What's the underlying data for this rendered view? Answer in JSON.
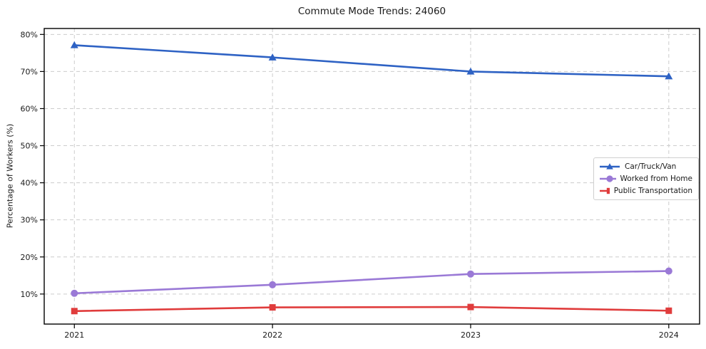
{
  "chart_data": {
    "type": "line",
    "title": "Commute Mode Trends: 24060",
    "xlabel": "",
    "ylabel": "Percentage of Workers (%)",
    "categories": [
      "2021",
      "2022",
      "2023",
      "2024"
    ],
    "series": [
      {
        "name": "Car/Truck/Van",
        "color": "#2e62c4",
        "marker": "triangle",
        "values": [
          77.1,
          73.8,
          70.0,
          68.7
        ]
      },
      {
        "name": "Worked from Home",
        "color": "#9a79d6",
        "marker": "circle",
        "values": [
          10.2,
          12.5,
          15.4,
          16.2
        ]
      },
      {
        "name": "Public Transportation",
        "color": "#e03c3c",
        "marker": "square",
        "values": [
          5.4,
          6.4,
          6.5,
          5.5
        ]
      }
    ],
    "yticks": [
      {
        "value": 10,
        "label": "10%"
      },
      {
        "value": 20,
        "label": "20%"
      },
      {
        "value": 30,
        "label": "30%"
      },
      {
        "value": 40,
        "label": "40%"
      },
      {
        "value": 50,
        "label": "50%"
      },
      {
        "value": 60,
        "label": "60%"
      },
      {
        "value": 70,
        "label": "70%"
      },
      {
        "value": 80,
        "label": "80%"
      }
    ],
    "ylim": [
      1.9,
      81.6
    ],
    "grid": "dashed-both",
    "legend_position": "center-right",
    "colors": {
      "grid": "#cccccc",
      "spine": "#000000",
      "text": "#1a1a1a",
      "background": "#ffffff"
    }
  }
}
